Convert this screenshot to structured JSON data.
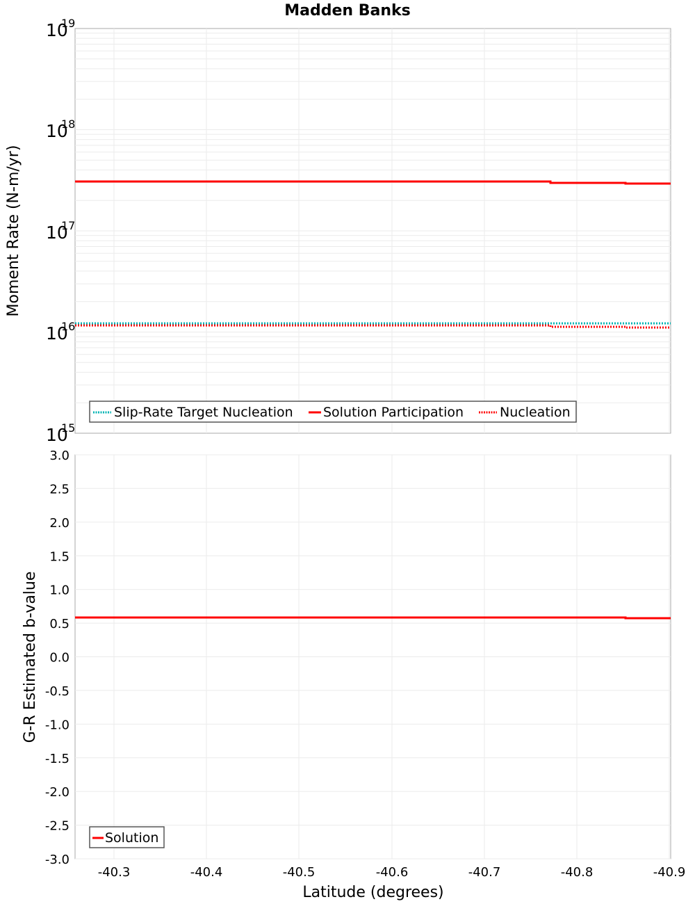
{
  "chart_data": [
    {
      "type": "line",
      "title": "Madden Banks",
      "xlabel": "Latitude (degrees)",
      "ylabel": "Moment Rate (N-m/yr)",
      "yscale": "log",
      "ylim": [
        1000000000000000.0,
        1e+19
      ],
      "xlim": [
        -40.26,
        -40.905
      ],
      "x_ticks": [
        "-40.3",
        "-40.4",
        "-40.5",
        "-40.6",
        "-40.7",
        "-40.8",
        "-40.9"
      ],
      "y_ticks": [
        "10^15",
        "10^16",
        "10^17",
        "10^18",
        "10^19"
      ],
      "grid": true,
      "legend_position": "lower-left",
      "series": [
        {
          "name": "Slip-Rate Target Nucleation",
          "style": "dotted",
          "color": "#00b4b4",
          "x": [
            -40.26,
            -40.775,
            -40.856,
            -40.905
          ],
          "values": [
            1.23e+16,
            1.23e+16,
            1.23e+16,
            1.23e+16
          ]
        },
        {
          "name": "Solution Participation",
          "style": "solid",
          "color": "#ff0000",
          "x": [
            -40.26,
            -40.775,
            -40.856,
            -40.905
          ],
          "values": [
            3.1e+17,
            3e+17,
            2.95e+17,
            2.95e+17
          ]
        },
        {
          "name": "Nucleation",
          "style": "dotted",
          "color": "#ff0000",
          "x": [
            -40.26,
            -40.775,
            -40.856,
            -40.905
          ],
          "values": [
            1.17e+16,
            1.12e+16,
            1.09e+16,
            1.09e+16
          ]
        }
      ]
    },
    {
      "type": "line",
      "title": "",
      "xlabel": "Latitude (degrees)",
      "ylabel": "G-R Estimated b-value",
      "ylim": [
        -3.0,
        3.0
      ],
      "xlim": [
        -40.26,
        -40.905
      ],
      "x_ticks": [
        "-40.3",
        "-40.4",
        "-40.5",
        "-40.6",
        "-40.7",
        "-40.8",
        "-40.9"
      ],
      "y_ticks": [
        "3.0",
        "2.5",
        "2.0",
        "1.5",
        "1.0",
        "0.5",
        "0.0",
        "-0.5",
        "-1.0",
        "-1.5",
        "-2.0",
        "-2.5",
        "-3.0"
      ],
      "grid": true,
      "legend_position": "lower-left",
      "series": [
        {
          "name": "Solution",
          "style": "solid",
          "color": "#ff0000",
          "x": [
            -40.26,
            -40.856,
            -40.905
          ],
          "values": [
            0.58,
            0.57,
            0.57
          ]
        }
      ]
    }
  ],
  "labels": {
    "title": "Madden Banks",
    "top_ylabel": "Moment Rate (N-m/yr)",
    "bottom_ylabel": "G-R Estimated b-value",
    "xlabel": "Latitude (degrees)",
    "log_base": "10",
    "log_exps": [
      "19",
      "18",
      "17",
      "16",
      "15"
    ],
    "x_ticks": [
      "-40.3",
      "-40.4",
      "-40.5",
      "-40.6",
      "-40.7",
      "-40.8",
      "-40.9"
    ],
    "b_ticks": [
      "3.0",
      "2.5",
      "2.0",
      "1.5",
      "1.0",
      "0.5",
      "0.0",
      "-0.5",
      "-1.0",
      "-1.5",
      "-2.0",
      "-2.5",
      "-3.0"
    ],
    "legend_top": [
      "Slip-Rate Target Nucleation",
      "Solution Participation",
      "Nucleation"
    ],
    "legend_bottom": [
      "Solution"
    ]
  },
  "colors": {
    "solution": "#ff0000",
    "target": "#00b4b4",
    "grid": "#ebebeb",
    "frame": "#aaaaaa"
  }
}
